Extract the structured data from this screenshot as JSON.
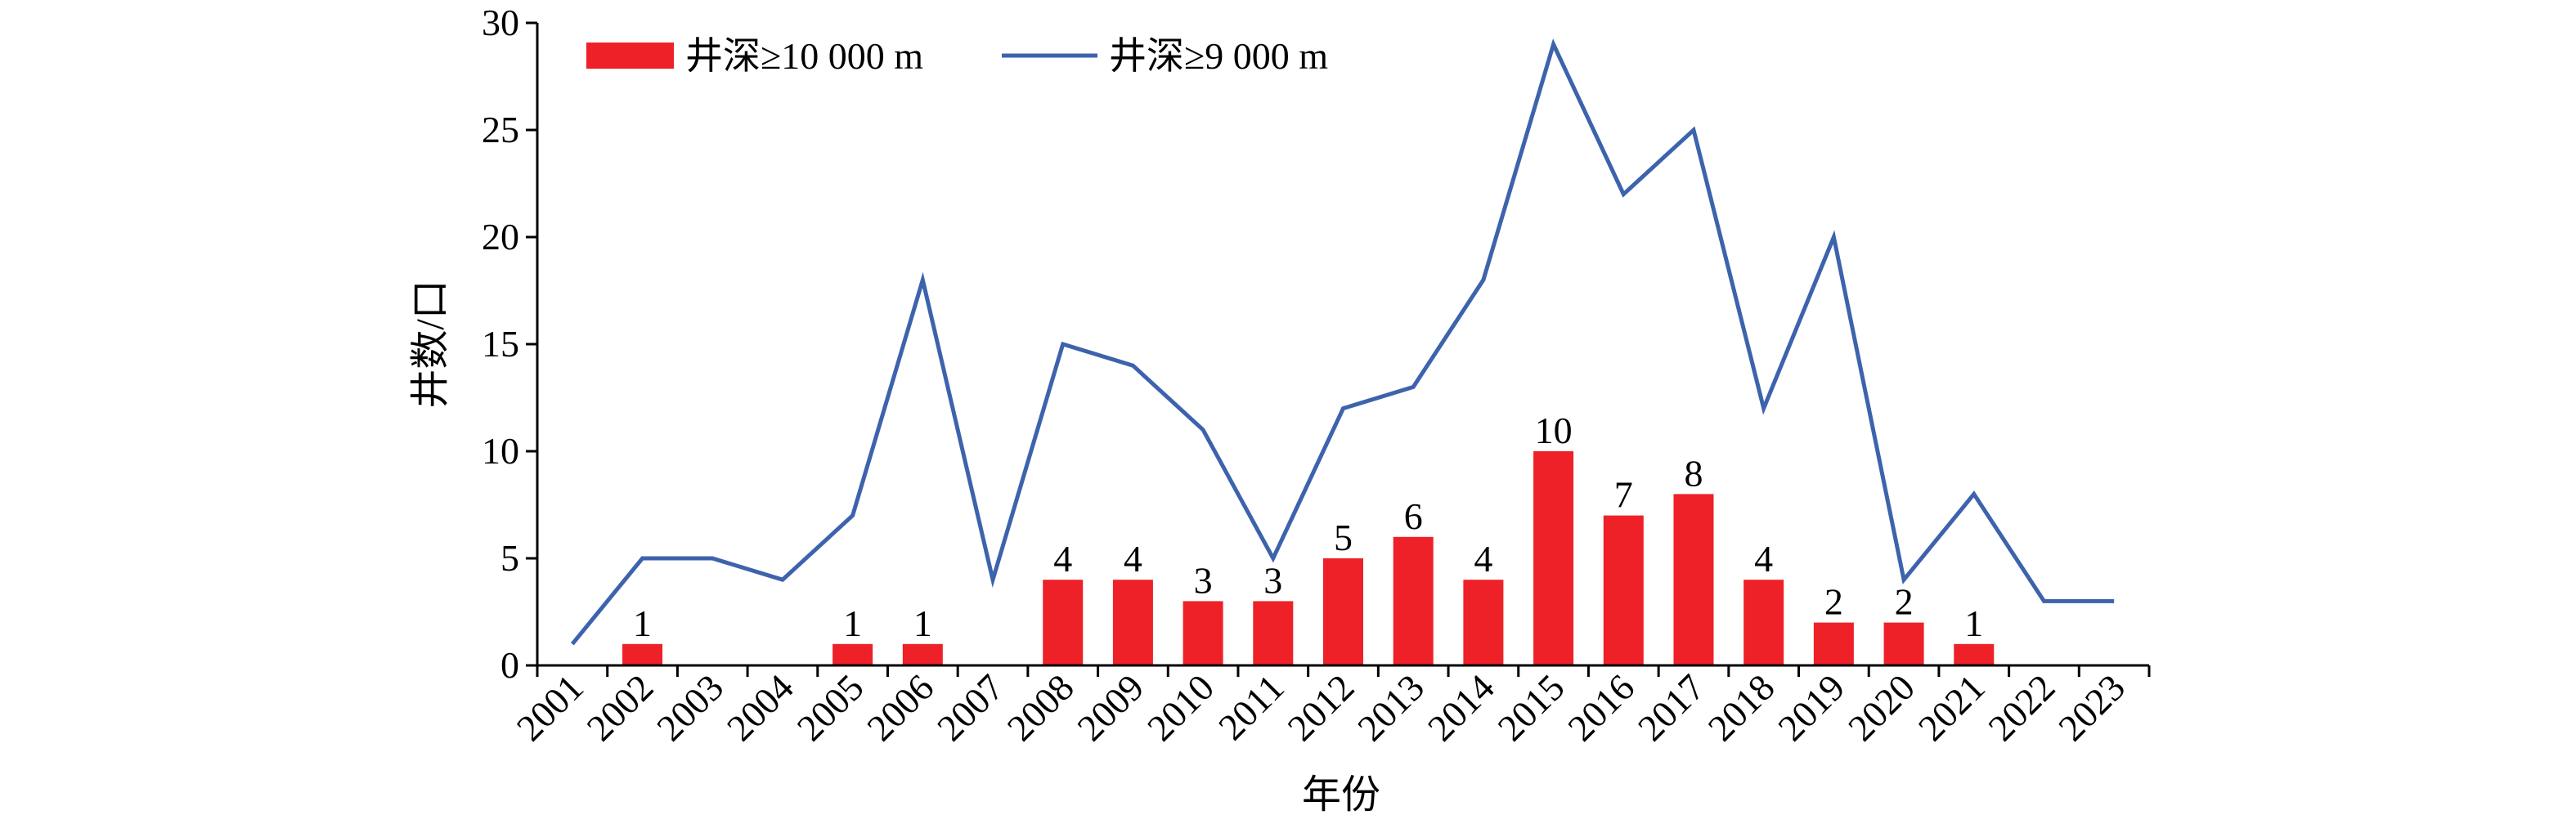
{
  "chart_data": {
    "type": "bar",
    "categories": [
      "2001",
      "2002",
      "2003",
      "2004",
      "2005",
      "2006",
      "2007",
      "2008",
      "2009",
      "2010",
      "2011",
      "2012",
      "2013",
      "2014",
      "2015",
      "2016",
      "2017",
      "2018",
      "2019",
      "2020",
      "2021",
      "2022",
      "2023"
    ],
    "series": [
      {
        "name": "井深≥10 000 m",
        "type": "bar",
        "color": "#ee2128",
        "values": [
          0,
          1,
          0,
          0,
          1,
          1,
          0,
          4,
          4,
          3,
          3,
          5,
          6,
          4,
          10,
          7,
          8,
          4,
          2,
          2,
          1,
          0,
          0
        ]
      },
      {
        "name": "井深≥9 000 m",
        "type": "line",
        "color": "#3d63ad",
        "values": [
          1,
          5,
          5,
          4,
          7,
          18,
          4,
          15,
          14,
          11,
          5,
          12,
          13,
          18,
          29,
          22,
          25,
          12,
          20,
          4,
          8,
          3,
          3
        ]
      }
    ],
    "xlabel": "年份",
    "ylabel": "井数/口",
    "ylim": [
      0,
      30
    ],
    "yticks": [
      0,
      5,
      10,
      15,
      20,
      25,
      30
    ],
    "grid": false,
    "legend": "top-left"
  }
}
